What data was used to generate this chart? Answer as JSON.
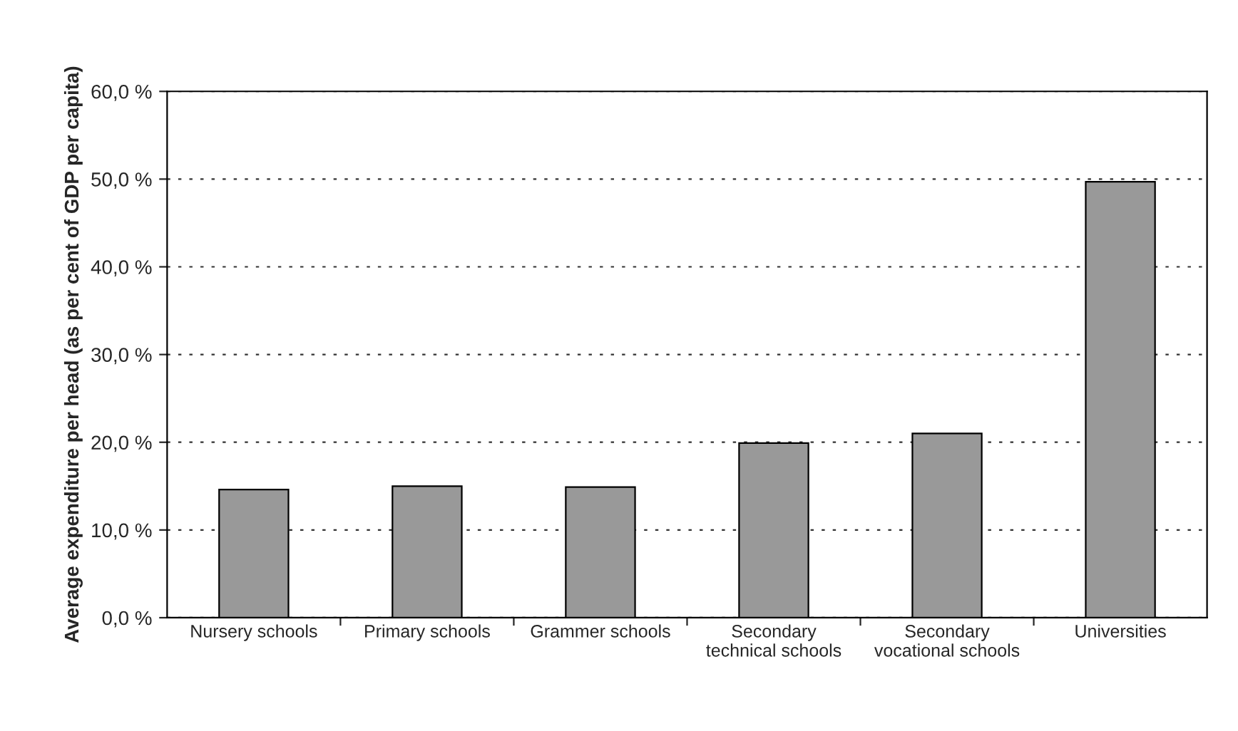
{
  "chart_data": {
    "type": "bar",
    "ylabel": "Average expenditure per head (as per cent of GDP per capita)",
    "categories": [
      "Nursery schools",
      "Primary schools",
      "Grammer schools",
      "Secondary\ntechnical schools",
      "Secondary\nvocational schools",
      "Universities"
    ],
    "values": [
      14.6,
      15.0,
      14.9,
      19.9,
      21.0,
      49.7
    ],
    "color": "#999999",
    "ylim": [
      0,
      60
    ],
    "yticks": [
      {
        "value": 0,
        "label": "0,0 %"
      },
      {
        "value": 10,
        "label": "10,0 %"
      },
      {
        "value": 20,
        "label": "20,0 %"
      },
      {
        "value": 30,
        "label": "30,0 %"
      },
      {
        "value": 40,
        "label": "40,0 %"
      },
      {
        "value": 50,
        "label": "50,0 %"
      },
      {
        "value": 60,
        "label": "60,0 %"
      }
    ],
    "grid": "y",
    "legend": false
  }
}
